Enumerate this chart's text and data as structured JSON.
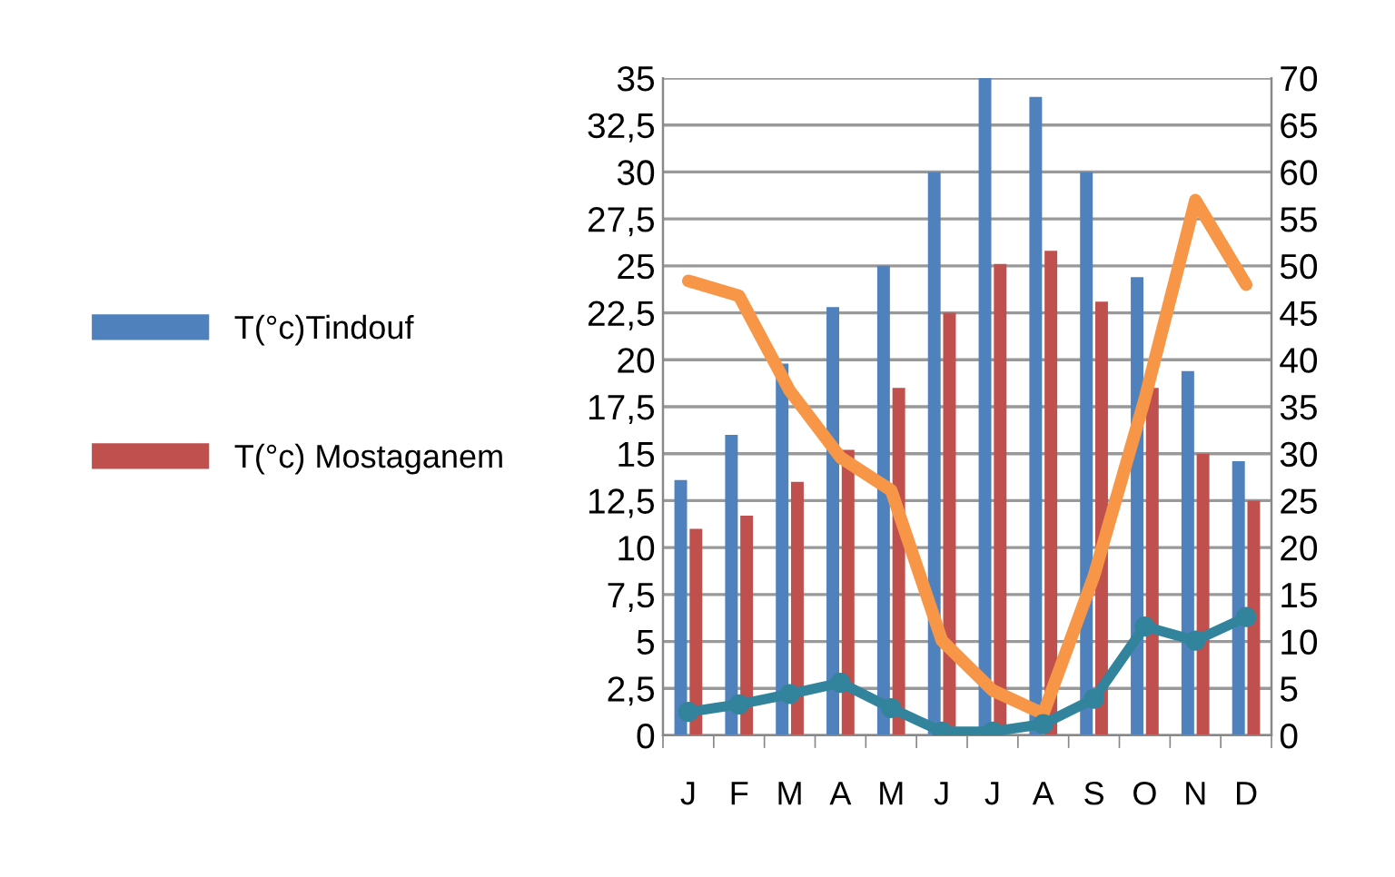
{
  "chart_data": {
    "type": "bar",
    "categories": [
      "J",
      "F",
      "M",
      "A",
      "M",
      "J",
      "J",
      "A",
      "S",
      "O",
      "N",
      "D"
    ],
    "series": [
      {
        "name": "T(°c)Tindouf",
        "color": "#4f81bd",
        "values": [
          13.6,
          16.0,
          19.8,
          22.8,
          25.0,
          30.0,
          35.0,
          34.0,
          30.0,
          24.4,
          19.4,
          14.6
        ]
      },
      {
        "name": "T(°c) Mostaganem",
        "color": "#c0504d",
        "values": [
          11.0,
          11.7,
          13.5,
          15.2,
          18.5,
          22.5,
          25.1,
          25.8,
          23.1,
          18.5,
          15.0,
          12.5
        ]
      },
      {
        "type": "line",
        "axis": "y2",
        "color": "#f79646",
        "marker": "none",
        "values": [
          48.4,
          46.8,
          36.7,
          29.6,
          26.1,
          10.1,
          4.8,
          2.3,
          17.0,
          35.8,
          57.0,
          48.0
        ]
      },
      {
        "type": "line",
        "axis": "y2",
        "color": "#31849b",
        "marker": "circle",
        "values": [
          2.5,
          3.3,
          4.4,
          5.6,
          2.9,
          0.4,
          0.4,
          1.2,
          3.9,
          11.6,
          10.1,
          12.6
        ]
      }
    ],
    "ylim": [
      0,
      35
    ],
    "yticks": [
      0,
      {
        "value": 2.5,
        "label": "2,5"
      },
      5,
      {
        "value": 7.5,
        "label": "7,5"
      },
      10,
      {
        "value": 12.5,
        "label": "12,5"
      },
      15,
      {
        "value": 17.5,
        "label": "17,5"
      },
      20,
      {
        "value": 22.5,
        "label": "22,5"
      },
      25,
      {
        "value": 27.5,
        "label": "27,5"
      },
      30,
      {
        "value": 32.5,
        "label": "32,5"
      },
      35
    ],
    "y2lim": [
      0,
      70
    ],
    "y2ticks": [
      0,
      5,
      10,
      15,
      20,
      25,
      30,
      35,
      40,
      45,
      50,
      55,
      60,
      65,
      70
    ],
    "grid": "y",
    "legend": "left"
  }
}
